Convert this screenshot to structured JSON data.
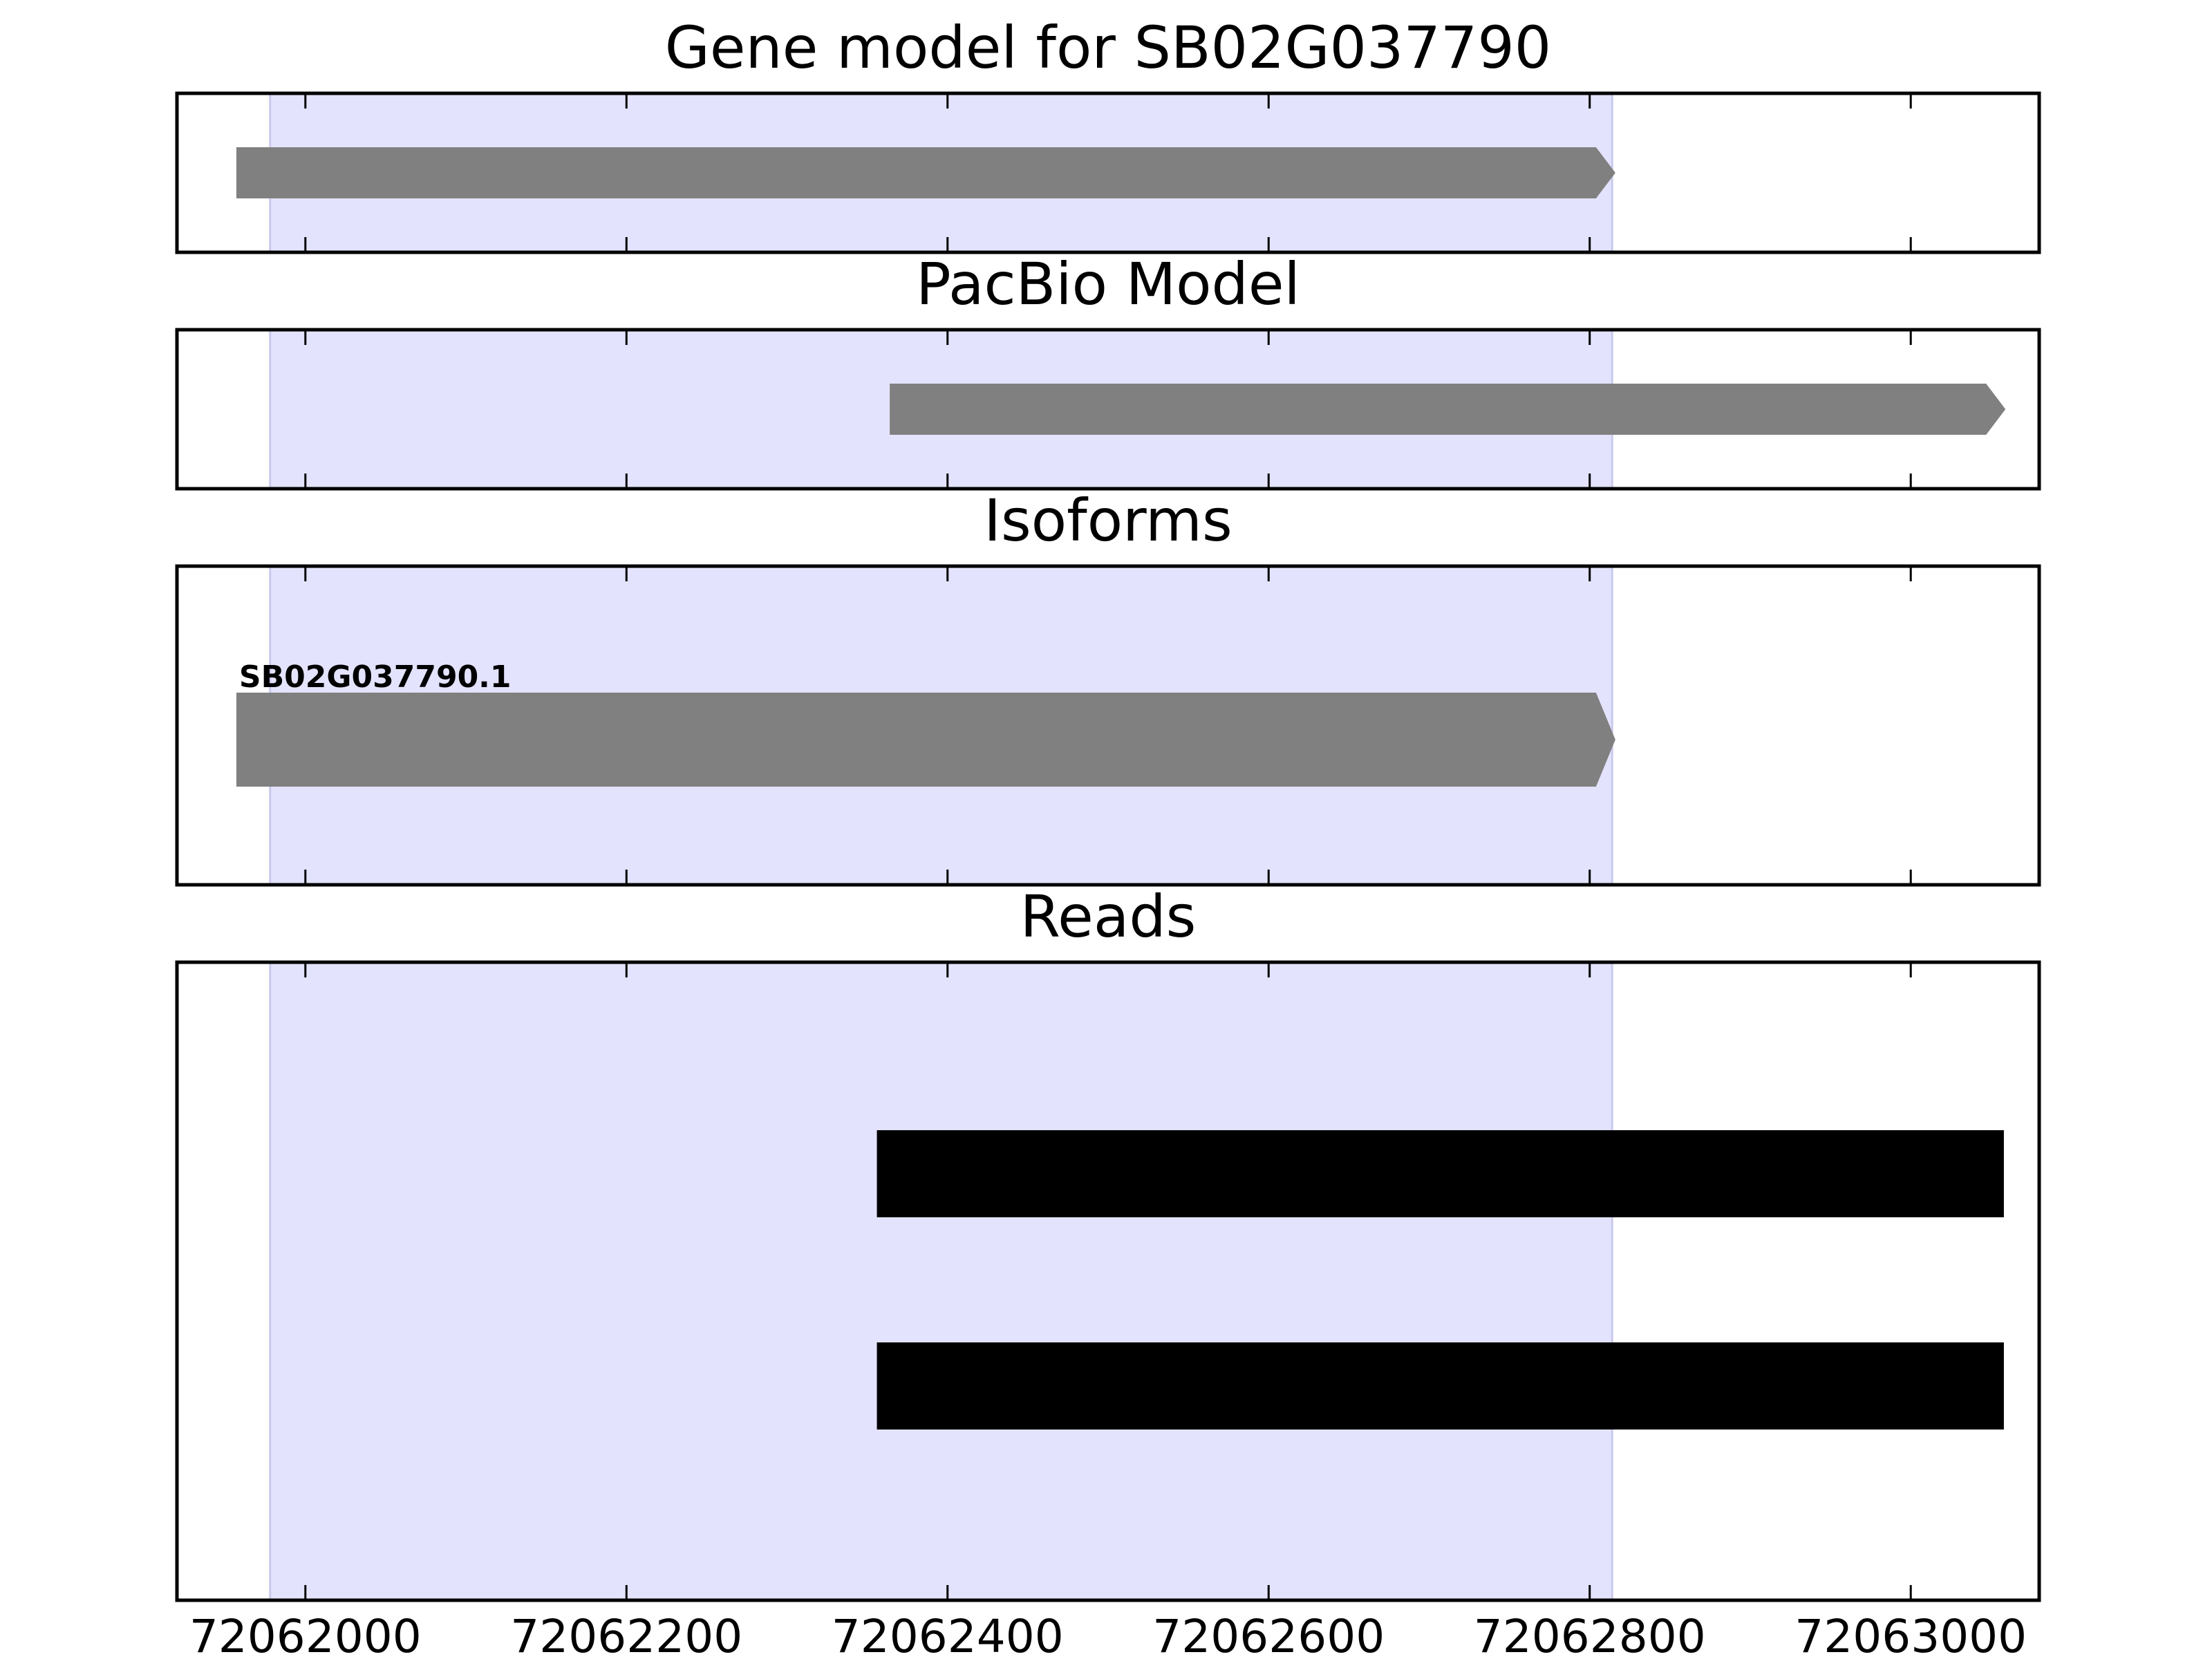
{
  "figure": {
    "highlight_color": "#e3e3fd",
    "highlight_range": [
      72061978,
      72062814
    ],
    "x_range": [
      72061920,
      72063080
    ],
    "x_ticks": [
      72062000,
      72062200,
      72062400,
      72062600,
      72062800,
      72063000
    ],
    "x_tick_labels": [
      "72062000",
      "72062200",
      "72062400",
      "72062600",
      "72062800",
      "72063000"
    ]
  },
  "panels": [
    {
      "id": "gene-model",
      "title": "Gene model for SB02G037790",
      "features": [
        {
          "label": "",
          "start": 72061957,
          "end": 72062816,
          "color": "#808080",
          "strand": "+"
        }
      ]
    },
    {
      "id": "pacbio-model",
      "title": "PacBio Model",
      "features": [
        {
          "label": "",
          "start": 72062364,
          "end": 72063059,
          "color": "#808080",
          "strand": "+"
        }
      ]
    },
    {
      "id": "isoforms",
      "title": "Isoforms",
      "features": [
        {
          "label": "SB02G037790.1",
          "start": 72061957,
          "end": 72062816,
          "color": "#808080",
          "strand": "+"
        }
      ]
    },
    {
      "id": "reads",
      "title": "Reads",
      "features": [
        {
          "label": "",
          "start": 72062356,
          "end": 72063058,
          "color": "#000000",
          "strand": "+"
        },
        {
          "label": "",
          "start": 72062356,
          "end": 72063058,
          "color": "#000000",
          "strand": "+"
        }
      ]
    }
  ]
}
